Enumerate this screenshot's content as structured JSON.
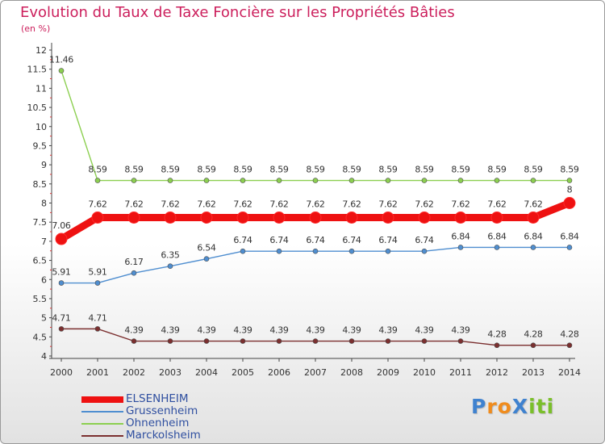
{
  "title": "Evolution du Taux de Taxe Foncière sur les Propriétés Bâties",
  "subtitle": "(en %)",
  "logo": {
    "text": "Proxiti",
    "parts": [
      "P",
      "r",
      "o",
      "X",
      "i",
      "t",
      "i"
    ]
  },
  "chart_data": {
    "type": "line",
    "title": "Evolution du Taux de Taxe Foncière sur les Propriétés Bâties",
    "ylabel": "(en %)",
    "xlabel": "",
    "ylim": [
      4,
      12
    ],
    "y_ticks": [
      4,
      4.5,
      5,
      5.5,
      6,
      6.5,
      7,
      7.5,
      8,
      8.5,
      9,
      9.5,
      10,
      10.5,
      11,
      11.5,
      12
    ],
    "y_tick_labels": [
      "4",
      "4.5",
      "5",
      "5.5",
      "6",
      "6.5",
      "7",
      "7.5",
      "8",
      "8.5",
      "9",
      "9.5",
      "10",
      "10.5",
      "11",
      "11.5",
      "12"
    ],
    "x": [
      "2000",
      "2001",
      "2002",
      "2003",
      "2004",
      "2005",
      "2006",
      "2007",
      "2008",
      "2009",
      "2010",
      "2011",
      "2012",
      "2013",
      "2014"
    ],
    "grid": false,
    "legend_position": "bottom-left",
    "series": [
      {
        "name": "Ohnenheim",
        "color": "#8ccf50",
        "values": [
          11.46,
          8.59,
          8.59,
          8.59,
          8.59,
          8.59,
          8.59,
          8.59,
          8.59,
          8.59,
          8.59,
          8.59,
          8.59,
          8.59,
          8.59
        ],
        "labels": [
          "11.46",
          "8.59",
          "8.59",
          "8.59",
          "8.59",
          "8.59",
          "8.59",
          "8.59",
          "8.59",
          "8.59",
          "8.59",
          "8.59",
          "8.59",
          "8.59",
          "8.59"
        ]
      },
      {
        "name": "Grussenheim",
        "color": "#4f8ed0",
        "values": [
          5.91,
          5.91,
          6.17,
          6.35,
          6.54,
          6.74,
          6.74,
          6.74,
          6.74,
          6.74,
          6.74,
          6.84,
          6.84,
          6.84,
          6.84
        ],
        "labels": [
          "5.91",
          "5.91",
          "6.17",
          "6.35",
          "6.54",
          "6.74",
          "6.74",
          "6.74",
          "6.74",
          "6.74",
          "6.74",
          "6.84",
          "6.84",
          "6.84",
          "6.84"
        ]
      },
      {
        "name": "Marckolsheim",
        "color": "#7b2f2f",
        "values": [
          4.71,
          4.71,
          4.39,
          4.39,
          4.39,
          4.39,
          4.39,
          4.39,
          4.39,
          4.39,
          4.39,
          4.39,
          4.28,
          4.28,
          4.28
        ],
        "labels": [
          "4.71",
          "4.71",
          "4.39",
          "4.39",
          "4.39",
          "4.39",
          "4.39",
          "4.39",
          "4.39",
          "4.39",
          "4.39",
          "4.39",
          "4.28",
          "4.28",
          "4.28"
        ]
      },
      {
        "name": "ELSENHEIM",
        "color": "#ee1111",
        "values": [
          7.06,
          7.62,
          7.62,
          7.62,
          7.62,
          7.62,
          7.62,
          7.62,
          7.62,
          7.62,
          7.62,
          7.62,
          7.62,
          7.62,
          8
        ],
        "labels": [
          "7.06",
          "7.62",
          "7.62",
          "7.62",
          "7.62",
          "7.62",
          "7.62",
          "7.62",
          "7.62",
          "7.62",
          "7.62",
          "7.62",
          "7.62",
          "7.62",
          "8"
        ]
      }
    ],
    "legend_order": [
      "ELSENHEIM",
      "Grussenheim",
      "Ohnenheim",
      "Marckolsheim"
    ]
  }
}
